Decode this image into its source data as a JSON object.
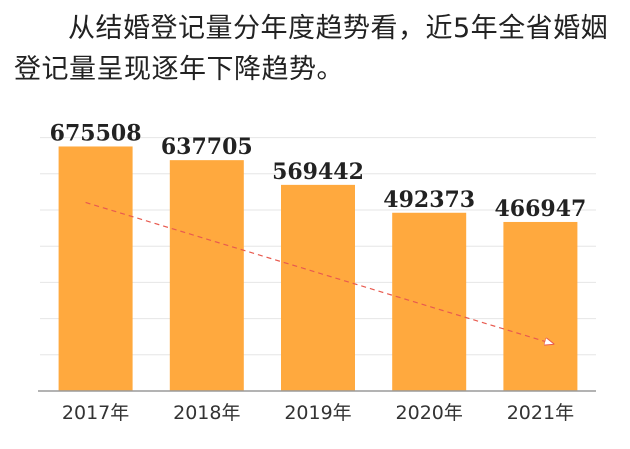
{
  "caption": "从结婚登记量分年度趋势看，近5年全省婚姻登记量呈现逐年下降趋势。",
  "colors": {
    "bar": "#FFA93E",
    "grid": "#E6E6E6",
    "axis": "#9A9A9A",
    "trend": "#E85A4F"
  },
  "chart_data": {
    "type": "bar",
    "categories": [
      "2017年",
      "2018年",
      "2019年",
      "2020年",
      "2021年"
    ],
    "values": [
      675508,
      637705,
      569442,
      492373,
      466947
    ],
    "data_labels": [
      "675508",
      "637705",
      "569442",
      "492373",
      "466947"
    ],
    "title": "",
    "xlabel": "",
    "ylabel": "",
    "ylim": [
      0,
      700000
    ],
    "grid": true,
    "trend_arrow": true
  }
}
